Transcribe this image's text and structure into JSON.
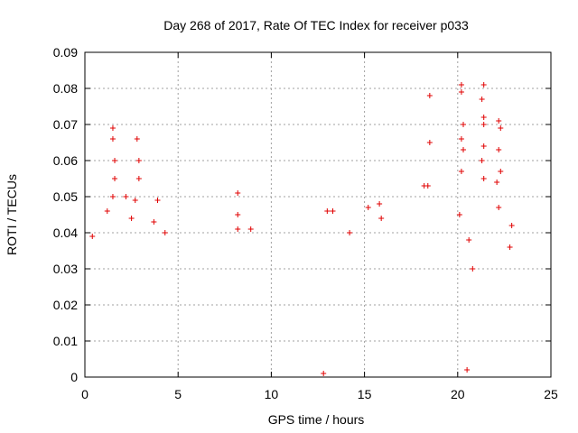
{
  "chart_data": {
    "type": "scatter",
    "title": "Day 268 of 2017, Rate Of TEC Index for receiver p033",
    "xlabel": "GPS time / hours",
    "ylabel": "ROTI / TECUs",
    "xlim": [
      0,
      25
    ],
    "ylim": [
      0,
      0.09
    ],
    "xticks": [
      "0",
      "5",
      "10",
      "15",
      "20",
      "25"
    ],
    "yticks": [
      "0",
      "0.01",
      "0.02",
      "0.03",
      "0.04",
      "0.05",
      "0.06",
      "0.07",
      "0.08",
      "0.09"
    ],
    "grid": true,
    "marker": "+",
    "color": "#e00000",
    "series": [
      {
        "points": [
          [
            0.4,
            0.039
          ],
          [
            1.2,
            0.046
          ],
          [
            1.5,
            0.069
          ],
          [
            1.5,
            0.066
          ],
          [
            1.6,
            0.06
          ],
          [
            1.6,
            0.055
          ],
          [
            1.5,
            0.05
          ],
          [
            2.2,
            0.05
          ],
          [
            2.5,
            0.044
          ],
          [
            2.8,
            0.066
          ],
          [
            2.9,
            0.06
          ],
          [
            2.9,
            0.055
          ],
          [
            2.7,
            0.049
          ],
          [
            3.7,
            0.043
          ],
          [
            3.9,
            0.049
          ],
          [
            4.3,
            0.04
          ],
          [
            8.2,
            0.051
          ],
          [
            8.2,
            0.045
          ],
          [
            8.2,
            0.041
          ],
          [
            8.9,
            0.041
          ],
          [
            13.0,
            0.046
          ],
          [
            13.3,
            0.046
          ],
          [
            14.2,
            0.04
          ],
          [
            15.2,
            0.047
          ],
          [
            15.8,
            0.048
          ],
          [
            15.9,
            0.044
          ],
          [
            18.2,
            0.053
          ],
          [
            18.4,
            0.053
          ],
          [
            18.5,
            0.078
          ],
          [
            18.5,
            0.065
          ],
          [
            20.2,
            0.081
          ],
          [
            20.2,
            0.079
          ],
          [
            20.3,
            0.07
          ],
          [
            20.2,
            0.066
          ],
          [
            20.3,
            0.063
          ],
          [
            20.2,
            0.057
          ],
          [
            20.1,
            0.045
          ],
          [
            20.6,
            0.038
          ],
          [
            20.8,
            0.03
          ],
          [
            21.4,
            0.081
          ],
          [
            21.3,
            0.077
          ],
          [
            21.4,
            0.072
          ],
          [
            21.4,
            0.07
          ],
          [
            21.4,
            0.064
          ],
          [
            21.3,
            0.06
          ],
          [
            21.4,
            0.055
          ],
          [
            22.2,
            0.071
          ],
          [
            22.3,
            0.069
          ],
          [
            22.2,
            0.063
          ],
          [
            22.3,
            0.057
          ],
          [
            22.1,
            0.054
          ],
          [
            22.2,
            0.047
          ],
          [
            22.9,
            0.042
          ],
          [
            22.8,
            0.036
          ],
          [
            20.5,
            0.002
          ],
          [
            12.8,
            0.001
          ]
        ]
      }
    ]
  }
}
